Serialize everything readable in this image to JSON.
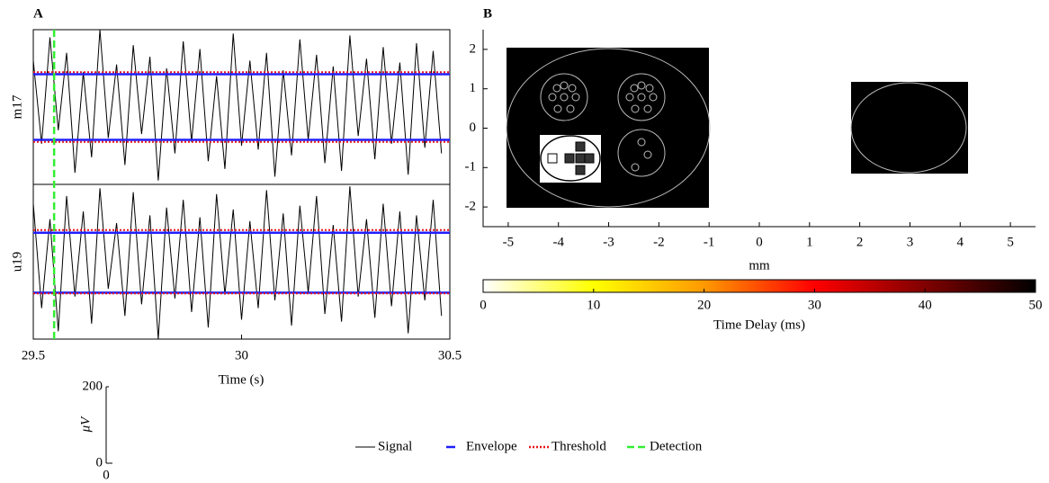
{
  "chart_data": [
    {
      "type": "traces",
      "panel": "A",
      "xlabel": "Time (s)",
      "xlim": [
        29.5,
        30.5
      ],
      "xticks": [
        29.5,
        30,
        30.5
      ],
      "x": [
        29.5,
        29.52,
        29.54,
        29.56,
        29.58,
        29.6,
        29.62,
        29.64,
        29.66,
        29.68,
        29.7,
        29.72,
        29.74,
        29.76,
        29.78,
        29.8,
        29.82,
        29.84,
        29.86,
        29.88,
        29.9,
        29.92,
        29.94,
        29.96,
        29.98,
        30,
        30.02,
        30.04,
        30.06,
        30.08,
        30.1,
        30.12,
        30.14,
        30.16,
        30.18,
        30.2,
        30.22,
        30.24,
        30.26,
        30.28,
        30.3,
        30.32,
        30.34,
        30.36,
        30.38,
        30.4,
        30.42,
        30.44,
        30.46,
        30.48
      ],
      "traces": [
        {
          "name": "m17",
          "ylim": [
            -200,
            200
          ],
          "envelope": [
            85,
            -85
          ],
          "threshold": [
            90,
            -90
          ],
          "values": [
            120,
            -95,
            180,
            -60,
            140,
            -170,
            90,
            -130,
            200,
            -80,
            110,
            -150,
            160,
            -70,
            130,
            -190,
            100,
            -120,
            170,
            -90,
            150,
            -140,
            80,
            -160,
            190,
            -100,
            120,
            -110,
            140,
            -180,
            95,
            -125,
            175,
            -85,
            135,
            -145,
            105,
            -165,
            185,
            -75,
            125,
            -135,
            155,
            -95,
            115,
            -175,
            165,
            -105,
            145,
            -120
          ]
        },
        {
          "name": "u19",
          "ylim": [
            -200,
            200
          ],
          "envelope": [
            75,
            -80
          ],
          "threshold": [
            82,
            -82
          ],
          "values": [
            150,
            -120,
            110,
            -180,
            170,
            -90,
            130,
            -160,
            190,
            -70,
            100,
            -140,
            180,
            -110,
            120,
            -200,
            140,
            -95,
            160,
            -130,
            115,
            -170,
            175,
            -85,
            135,
            -150,
            105,
            -120,
            185,
            -100,
            125,
            -165,
            145,
            -80,
            170,
            -135,
            95,
            -155,
            195,
            -90,
            110,
            -145,
            150,
            -115,
            130,
            -185,
            120,
            -100,
            160,
            -140
          ]
        }
      ],
      "detection": 29.55,
      "legend": [
        {
          "name": "Signal",
          "color": "#000000",
          "style": "solid"
        },
        {
          "name": "Envelope",
          "color": "#1f1fff",
          "style": "dash"
        },
        {
          "name": "Threshold",
          "color": "#e8151b",
          "style": "dot"
        },
        {
          "name": "Detection",
          "color": "#33ee33",
          "style": "dash"
        }
      ],
      "scalebar": {
        "yticks": [
          0,
          200
        ],
        "xticks": [
          0
        ],
        "ylabel": "μV"
      }
    },
    {
      "type": "map",
      "panel": "B",
      "xlabel": "mm",
      "xlim": [
        -5.5,
        5.5
      ],
      "xticks": [
        -5,
        -4,
        -3,
        -2,
        -1,
        0,
        1,
        2,
        3,
        4,
        5
      ],
      "ylim": [
        -2.5,
        2.5
      ],
      "yticks": [
        -2,
        -1,
        0,
        1,
        2
      ],
      "colorbar": {
        "lim": [
          0,
          50
        ],
        "ticks": [
          0,
          10,
          20,
          30,
          40,
          50
        ],
        "label": "Time Delay (ms)",
        "colors": [
          "#ffffff",
          "#ffff00",
          "#ff9900",
          "#ff0000",
          "#800000",
          "#000000"
        ]
      }
    }
  ]
}
